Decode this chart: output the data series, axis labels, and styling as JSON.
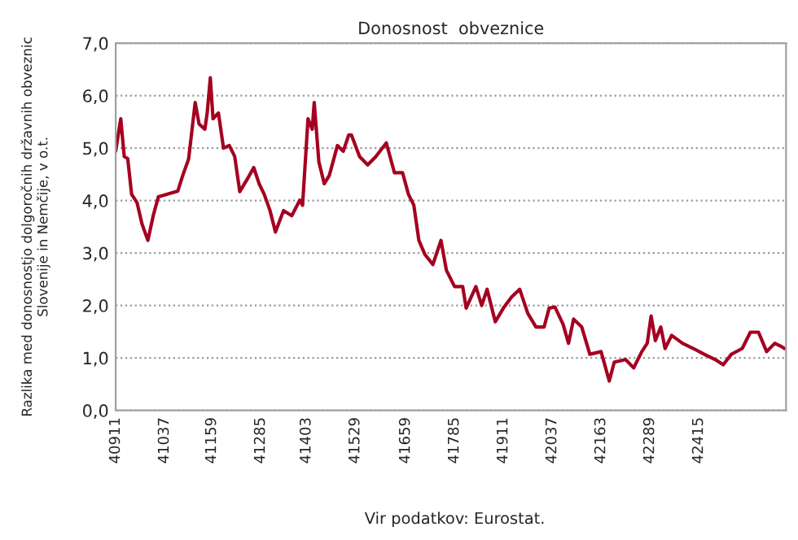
{
  "chart_data": {
    "type": "line",
    "title": "Donosnost  obveznice",
    "ylabel": "Razlika med donosnostjo dolgoročnih državnih obveznic\nSlovenije in Nemčije, v o.t.",
    "annotations": [
      "Vir podatkov: Eurostat."
    ],
    "series": [
      {
        "color": "#a50021",
        "x": [
          40911,
          40924,
          40933,
          40942,
          40952,
          40966,
          40979,
          40994,
          41008,
          41021,
          41071,
          41084,
          41099,
          41116,
          41126,
          41141,
          41147,
          41155,
          41162,
          41176,
          41189,
          41204,
          41218,
          41231,
          41252,
          41267,
          41281,
          41294,
          41309,
          41323,
          41344,
          41365,
          41386,
          41393,
          41407,
          41418,
          41423,
          41435,
          41449,
          41462,
          41483,
          41498,
          41512,
          41519,
          41540,
          41561,
          41582,
          41609,
          41630,
          41651,
          41666,
          41680,
          41693,
          41708,
          41729,
          41750,
          41764,
          41785,
          41806,
          41815,
          41840,
          41855,
          41869,
          41890,
          41911,
          41932,
          41953,
          41974,
          41995,
          42016,
          42029,
          42044,
          42065,
          42079,
          42092,
          42113,
          42134,
          42163,
          42184,
          42197,
          42226,
          42247,
          42268,
          42282,
          42292,
          42303,
          42317,
          42328,
          42345,
          42373,
          42401,
          42429,
          42457,
          42478,
          42499,
          42527,
          42548,
          42569,
          42590,
          42611,
          42625,
          42636
        ],
        "values": [
          4.94,
          5.56,
          4.84,
          4.8,
          4.12,
          3.96,
          3.55,
          3.24,
          3.72,
          4.07,
          4.18,
          4.48,
          4.79,
          5.87,
          5.46,
          5.36,
          5.67,
          6.34,
          5.56,
          5.67,
          5.0,
          5.05,
          4.84,
          4.17,
          4.43,
          4.63,
          4.32,
          4.12,
          3.81,
          3.4,
          3.81,
          3.71,
          4.01,
          3.91,
          5.56,
          5.36,
          5.87,
          4.74,
          4.32,
          4.48,
          5.05,
          4.94,
          5.25,
          5.25,
          4.84,
          4.68,
          4.84,
          5.1,
          4.53,
          4.53,
          4.12,
          3.91,
          3.24,
          2.98,
          2.78,
          3.24,
          2.67,
          2.36,
          2.36,
          1.95,
          2.36,
          2.0,
          2.31,
          1.69,
          1.95,
          2.16,
          2.31,
          1.85,
          1.59,
          1.59,
          1.95,
          1.97,
          1.64,
          1.28,
          1.74,
          1.59,
          1.07,
          1.12,
          0.56,
          0.92,
          0.97,
          0.81,
          1.12,
          1.28,
          1.8,
          1.33,
          1.59,
          1.18,
          1.43,
          1.28,
          1.18,
          1.07,
          0.97,
          0.87,
          1.07,
          1.18,
          1.49,
          1.49,
          1.12,
          1.28,
          1.23,
          1.18
        ]
      }
    ],
    "xlim": [
      40911,
      42640
    ],
    "xticks": [
      40911,
      41037,
      41159,
      41285,
      41403,
      41529,
      41659,
      41785,
      41911,
      42037,
      42163,
      42289,
      42415
    ],
    "ylim": [
      0,
      7
    ],
    "yticks": [
      {
        "value": 0,
        "label": "0,0"
      },
      {
        "value": 1,
        "label": "1,0"
      },
      {
        "value": 2,
        "label": "2,0"
      },
      {
        "value": 3,
        "label": "3,0"
      },
      {
        "value": 4,
        "label": "4,0"
      },
      {
        "value": 5,
        "label": "5,0"
      },
      {
        "value": 6,
        "label": "6,0"
      },
      {
        "value": 7,
        "label": "7,0"
      }
    ],
    "grid": "y"
  }
}
